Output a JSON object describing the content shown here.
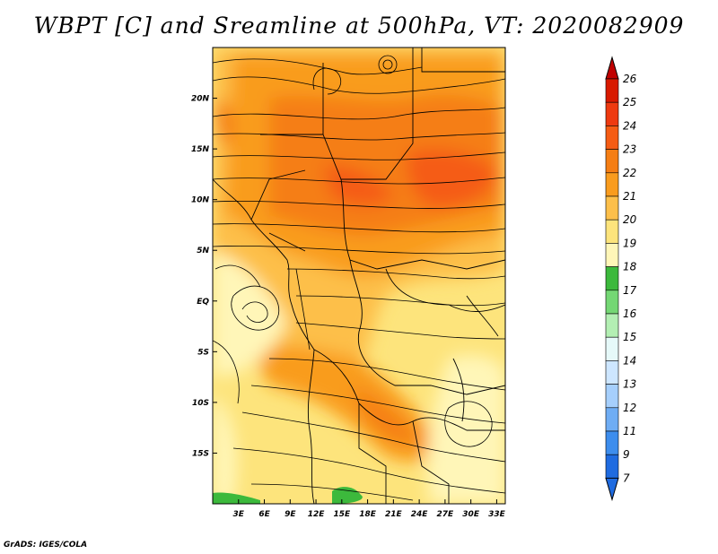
{
  "title": "WBPT [C] and Sreamline at 500hPa, VT: 2020082909",
  "credit": "GrADS: IGES/COLA",
  "map": {
    "lon_range": [
      0,
      34
    ],
    "lat_range": [
      -20,
      25
    ],
    "lon_ticks": [
      "3E",
      "6E",
      "9E",
      "12E",
      "15E",
      "18E",
      "21E",
      "24E",
      "27E",
      "30E",
      "33E"
    ],
    "lat_ticks": [
      "20N",
      "15N",
      "10N",
      "5N",
      "EQ",
      "5S",
      "10S",
      "15S"
    ]
  },
  "colorbar": {
    "labels": [
      "26",
      "25",
      "24",
      "23",
      "22",
      "21",
      "20",
      "19",
      "18",
      "17",
      "16",
      "15",
      "14",
      "13",
      "12",
      "11",
      "9",
      "7"
    ],
    "colors": [
      "#c00000",
      "#d81a00",
      "#ee3a10",
      "#f55c14",
      "#f57e14",
      "#f99c1e",
      "#fdbf4a",
      "#fde47c",
      "#fff6b8",
      "#3cb93c",
      "#74d774",
      "#b3efb3",
      "#e6f9f9",
      "#cde6ff",
      "#a6cffc",
      "#6fadf4",
      "#3d8ded",
      "#1f6be0"
    ]
  }
}
